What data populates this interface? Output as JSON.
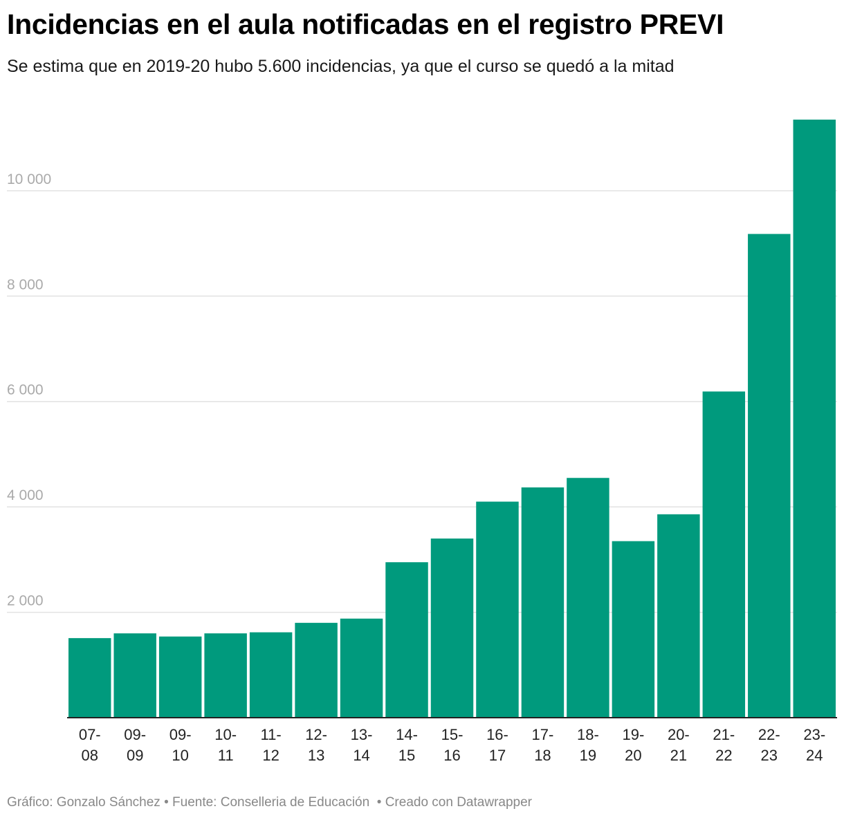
{
  "header": {
    "title": "Incidencias en el aula notificadas en el registro PREVI",
    "subtitle": "Se estima que en 2019-20 hubo 5.600 incidencias, ya que el curso se quedó a la mitad"
  },
  "footer": {
    "author": "Gráfico: Gonzalo Sánchez",
    "source": "Fuente: Conselleria de Educación",
    "tool": "Creado con Datawrapper",
    "separator": "•"
  },
  "colors": {
    "bar": "#009a7d",
    "grid": "#e2e2e2",
    "axis": "#222222",
    "tick_label": "#aaaaaa",
    "category_label": "#222222"
  },
  "chart_data": {
    "type": "bar",
    "title": "Incidencias en el aula notificadas en el registro PREVI",
    "xlabel": "",
    "ylabel": "",
    "ylim": [
      0,
      11350
    ],
    "yticks": [
      2000,
      4000,
      6000,
      8000,
      10000
    ],
    "ytick_labels": [
      "2 000",
      "4 000",
      "6 000",
      "8 000",
      "10 000"
    ],
    "categories": [
      [
        "07-",
        "08"
      ],
      [
        "09-",
        "09"
      ],
      [
        "09-",
        "10"
      ],
      [
        "10-",
        "11"
      ],
      [
        "11-",
        "12"
      ],
      [
        "12-",
        "13"
      ],
      [
        "13-",
        "14"
      ],
      [
        "14-",
        "15"
      ],
      [
        "15-",
        "16"
      ],
      [
        "16-",
        "17"
      ],
      [
        "17-",
        "18"
      ],
      [
        "18-",
        "19"
      ],
      [
        "19-",
        "20"
      ],
      [
        "20-",
        "21"
      ],
      [
        "21-",
        "22"
      ],
      [
        "22-",
        "23"
      ],
      [
        "23-",
        "24"
      ]
    ],
    "values": [
      1510,
      1600,
      1540,
      1600,
      1620,
      1800,
      1880,
      2950,
      3400,
      4100,
      4370,
      4550,
      3350,
      3860,
      6190,
      9180,
      11350
    ],
    "grid": true
  }
}
